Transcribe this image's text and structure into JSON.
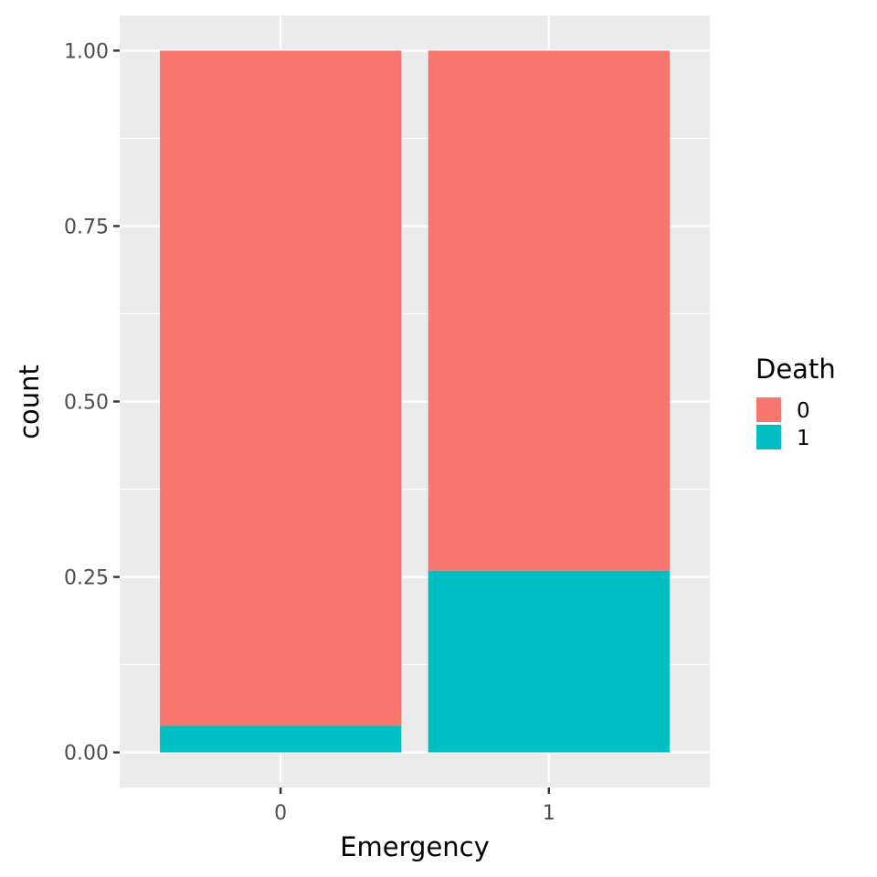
{
  "chart_data": {
    "type": "bar",
    "stacked": true,
    "categories": [
      "0",
      "1"
    ],
    "series": [
      {
        "name": "0",
        "values": [
          0.962,
          0.741
        ],
        "color": "#F8766D"
      },
      {
        "name": "1",
        "values": [
          0.038,
          0.259
        ],
        "color": "#00BFC4"
      }
    ],
    "xlabel": "Emergency",
    "ylabel": "count",
    "ylim": [
      -0.05,
      1.05
    ],
    "yticks": [
      0,
      0.25,
      0.5,
      0.75,
      1
    ],
    "ytick_labels": [
      "0.00",
      "0.25",
      "0.50",
      "0.75",
      "1.00"
    ],
    "legend": {
      "title": "Death",
      "placement": "right"
    },
    "grid": true,
    "panel_color": "#EBEBEB",
    "grid_color": "#FFFFFF"
  }
}
